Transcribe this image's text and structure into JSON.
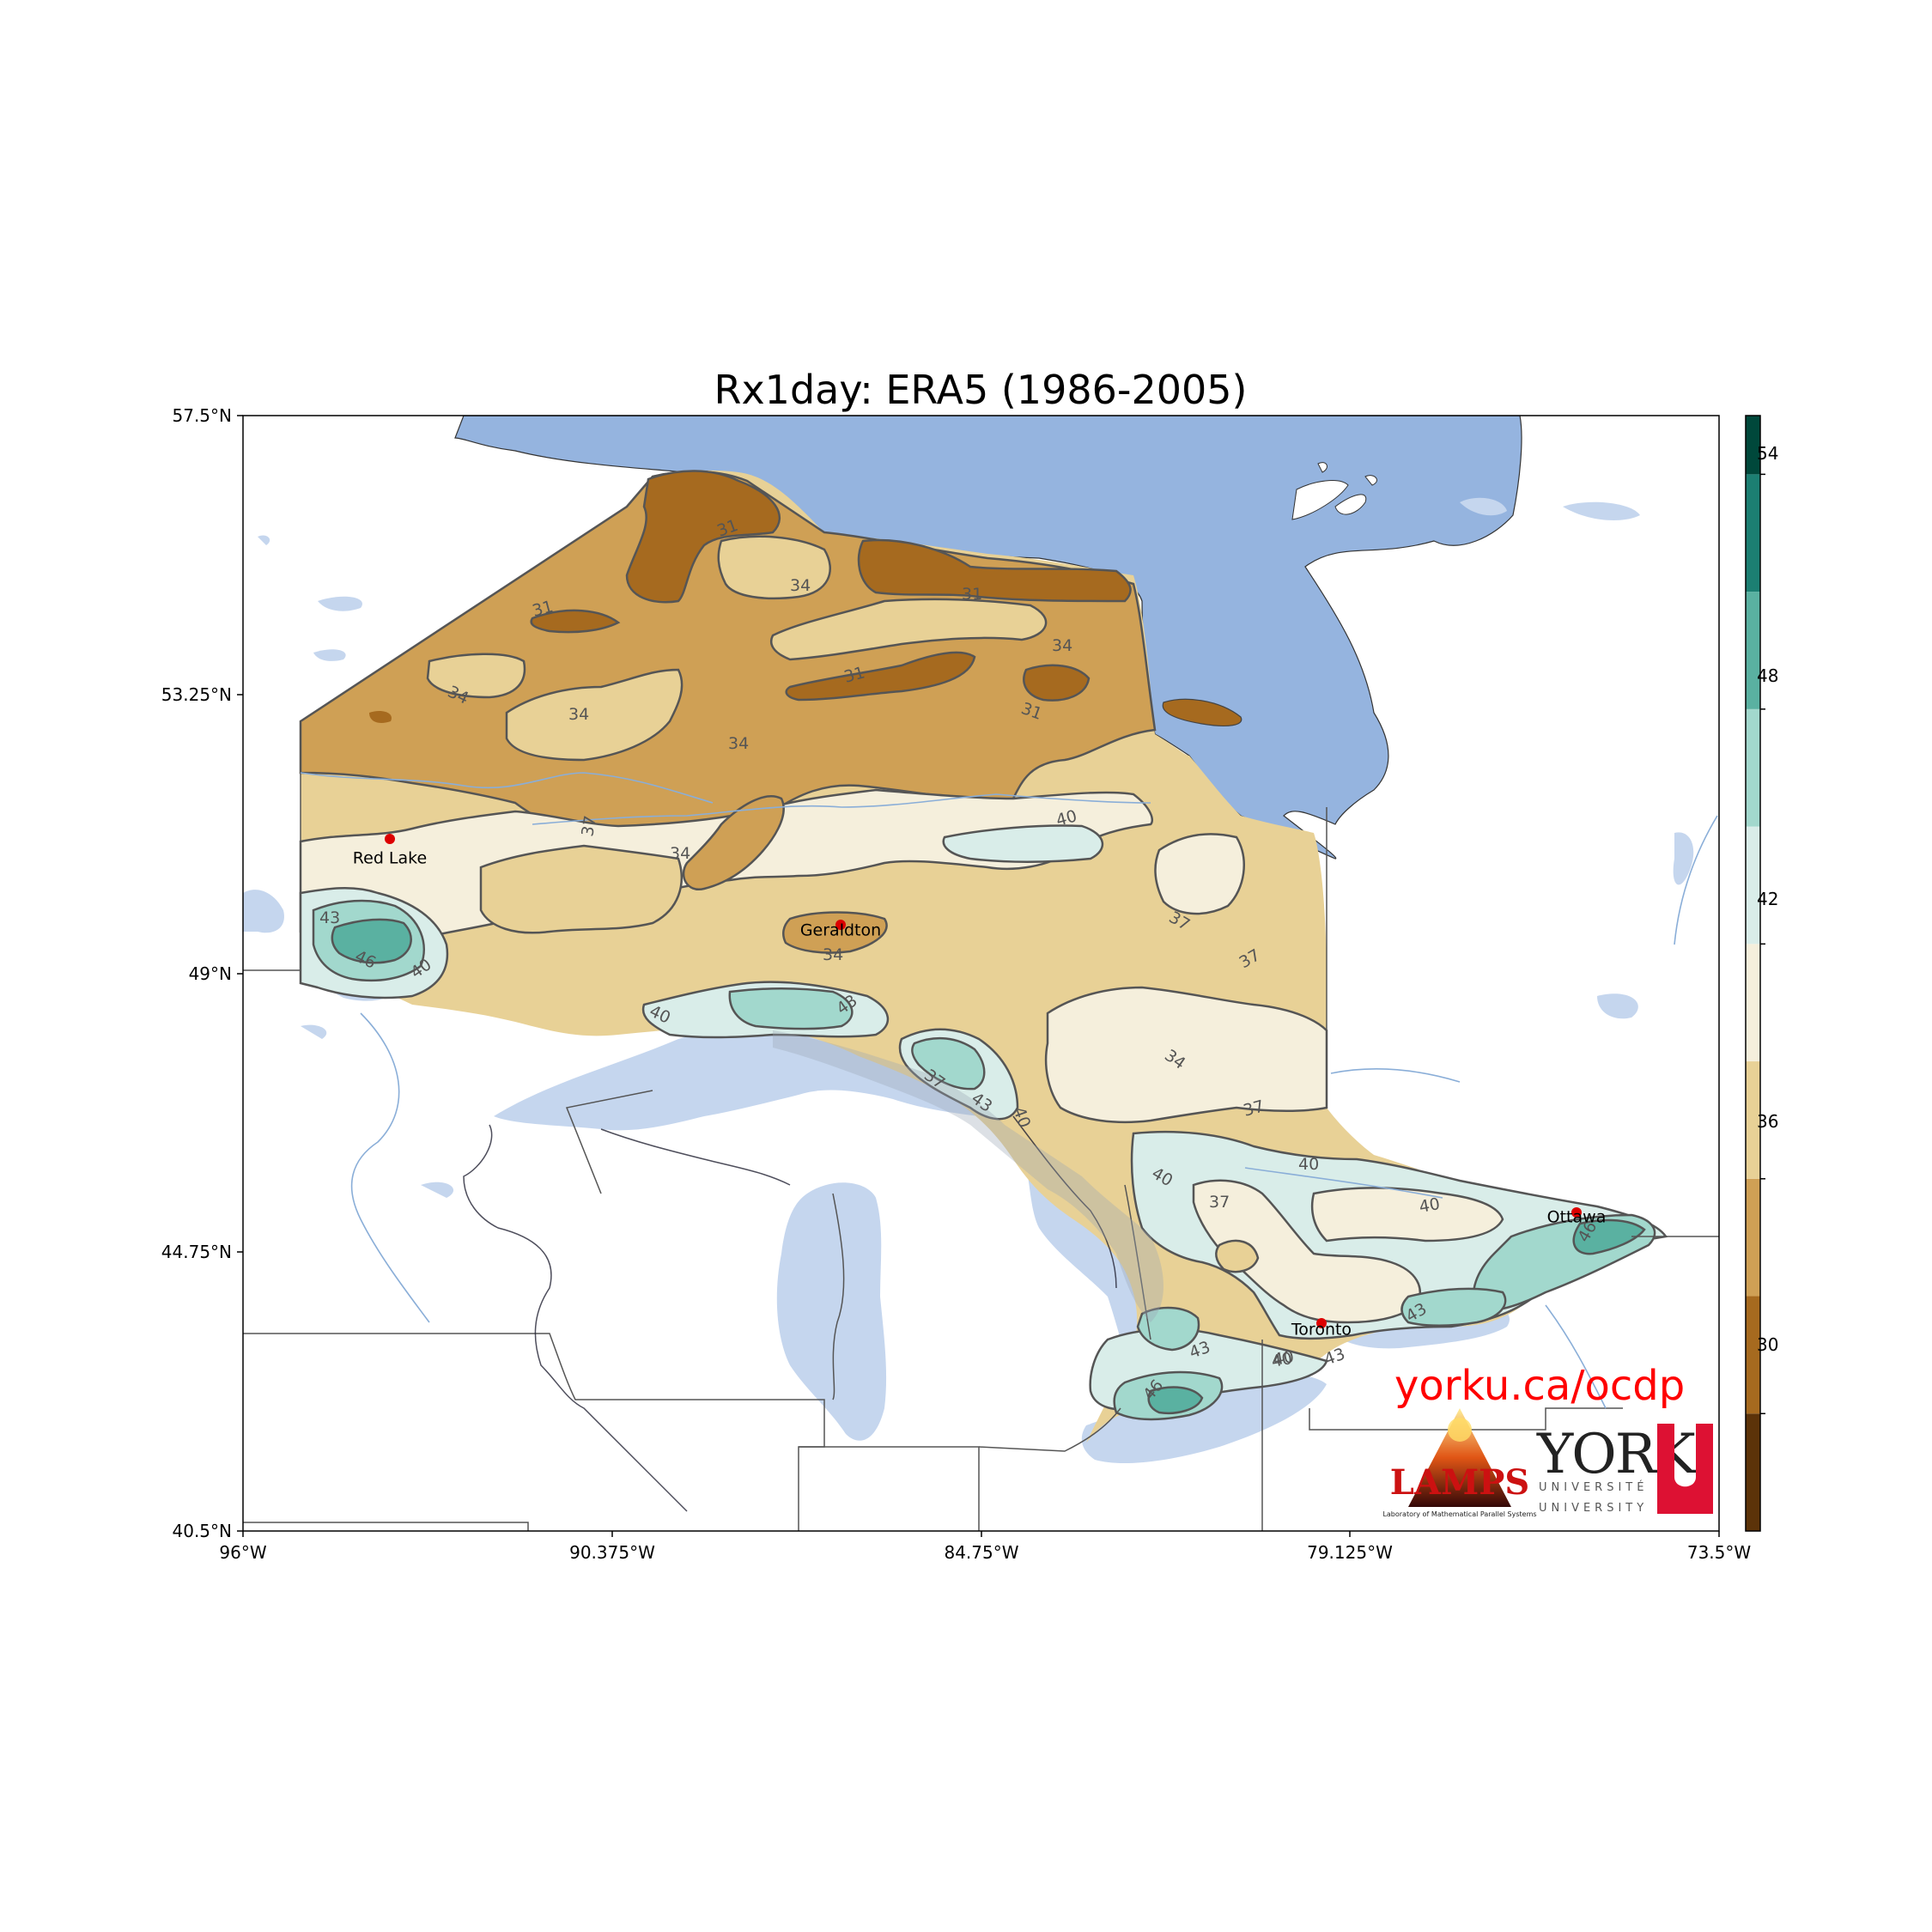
{
  "title": "Rx1day: ERA5 (1986-2005)",
  "url_text": "yorku.ca/ocdp",
  "logos": {
    "lamps_text": "LAMPS",
    "lamps_sub": "Laboratory of Mathematical Parallel Systems",
    "york_text": "YORK",
    "york_sub1": "UNIVERSITÉ",
    "york_sub2": "UNIVERSITY"
  },
  "axes": {
    "lat_ticks": [
      "57.5°N",
      "53.25°N",
      "49°N",
      "44.75°N",
      "40.5°N"
    ],
    "lon_ticks": [
      "96°W",
      "90.375°W",
      "84.75°W",
      "79.125°W",
      "73.5°W"
    ],
    "lat_range": [
      40.5,
      57.5
    ],
    "lon_range": [
      -96,
      -73.5
    ]
  },
  "colorbar": {
    "ticks": [
      "30",
      "36",
      "42",
      "48",
      "54"
    ],
    "levels": [
      27,
      30,
      33,
      36,
      39,
      42,
      45,
      48,
      51,
      54,
      55.5
    ],
    "colors": [
      "#5c3309",
      "#a66a1f",
      "#cfa055",
      "#e8d196",
      "#f5efdc",
      "#d9ede9",
      "#a2d8cd",
      "#5ab1a1",
      "#1c7f72",
      "#00483b"
    ]
  },
  "cities": [
    {
      "name": "Red Lake",
      "lon": -93.8,
      "lat": 51.0
    },
    {
      "name": "Geraldton",
      "lon": -86.9,
      "lat": 49.7
    },
    {
      "name": "Toronto",
      "lon": -79.6,
      "lat": 43.7
    },
    {
      "name": "Ottawa",
      "lon": -75.7,
      "lat": 45.4
    }
  ],
  "contour_labels": [
    "31",
    "34",
    "31",
    "31",
    "34",
    "31",
    "34",
    "31",
    "34",
    "34",
    "37",
    "34",
    "40",
    "37",
    "43",
    "46",
    "40",
    "34",
    "37",
    "40",
    "43",
    "37",
    "43",
    "40",
    "40",
    "34",
    "37",
    "40",
    "40",
    "37",
    "40",
    "46",
    "43",
    "43",
    "40",
    "43",
    "46"
  ],
  "colors": {
    "water": "#95b4df",
    "lake_light": "#c5d6ee",
    "river": "#8aaed8",
    "city_dot": "#dd0000",
    "url": "#ff0000"
  }
}
